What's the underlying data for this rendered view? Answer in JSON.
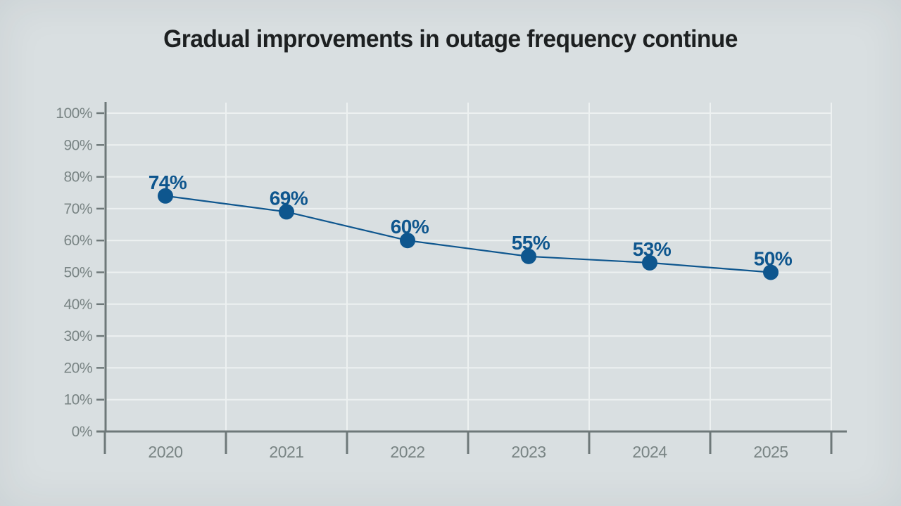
{
  "page": {
    "background": "#d9dfe1"
  },
  "chart_data": {
    "type": "line",
    "title": "Gradual improvements in outage frequency continue",
    "categories": [
      "2020",
      "2021",
      "2022",
      "2023",
      "2024",
      "2025"
    ],
    "values": [
      74,
      69,
      60,
      55,
      53,
      50
    ],
    "point_labels": [
      "74%",
      "69%",
      "60%",
      "55%",
      "53%",
      "50%"
    ],
    "xlabel": "",
    "ylabel": "",
    "ylim": [
      0,
      100
    ],
    "y_tick_step": 10,
    "y_tick_suffix": "%",
    "grid": true,
    "legend": "none",
    "colors": {
      "line": "#0e568e",
      "point": "#0e568e",
      "point_label": "#0e568e",
      "axis": "#6e7879",
      "tick_label": "#798484",
      "grid": "#edf1f1",
      "background": "#d9dfe1",
      "title": "#1d2021"
    }
  }
}
